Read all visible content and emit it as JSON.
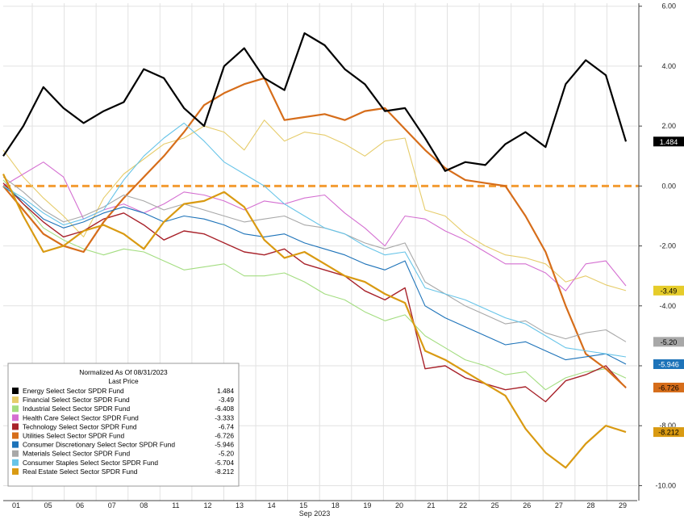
{
  "chart_data": {
    "type": "line",
    "x_axis": {
      "ticks": [
        "01",
        "05",
        "06",
        "07",
        "08",
        "11",
        "12",
        "13",
        "14",
        "15",
        "18",
        "19",
        "20",
        "21",
        "22",
        "25",
        "26",
        "27",
        "28",
        "29"
      ],
      "period_label": "Sep 2023"
    },
    "y_axis": {
      "ticks": [
        "6.00",
        "4.00",
        "2.00",
        "0.00",
        "-2.00",
        "-4.00",
        "-6.00",
        "-8.00",
        "-10.00"
      ],
      "ylim": [
        -10.5,
        6.1
      ],
      "grid": true
    },
    "zero_line": {
      "value": 0,
      "color": "#f39c33"
    },
    "legend": {
      "title": "Normalized As Of 08/31/2023",
      "subtitle": "Last Price",
      "position": "bottom-left"
    },
    "series": [
      {
        "name": "Energy Select Sector SPDR Fund",
        "last": "1.484",
        "color": "#000000",
        "values": [
          1.0,
          2.0,
          3.3,
          2.6,
          2.1,
          2.5,
          2.8,
          3.9,
          3.6,
          2.6,
          2.0,
          4.0,
          4.6,
          3.6,
          3.2,
          5.1,
          4.7,
          3.9,
          3.4,
          2.5,
          2.6,
          1.6,
          0.5,
          0.8,
          0.7,
          1.4,
          1.8,
          1.3,
          3.4,
          4.2,
          3.7,
          1.484
        ]
      },
      {
        "name": "Financial Select Sector SPDR Fund",
        "last": "-3.49",
        "color": "#e6cc6a",
        "values": [
          1.2,
          0.3,
          -0.4,
          -1.0,
          -1.7,
          -0.4,
          0.4,
          0.9,
          1.4,
          1.6,
          2.0,
          1.8,
          1.2,
          2.2,
          1.5,
          1.8,
          1.7,
          1.4,
          1.0,
          1.5,
          1.6,
          -0.8,
          -1.0,
          -1.6,
          -2.0,
          -2.3,
          -2.4,
          -2.6,
          -3.2,
          -3.0,
          -3.3,
          -3.49
        ]
      },
      {
        "name": "Industrial Select Sector SPDR Fund",
        "last": "-6.408",
        "color": "#a3dd80",
        "values": [
          0.2,
          -0.6,
          -1.4,
          -1.8,
          -2.1,
          -2.3,
          -2.1,
          -2.2,
          -2.5,
          -2.8,
          -2.7,
          -2.6,
          -3.0,
          -3.0,
          -2.9,
          -3.2,
          -3.6,
          -3.8,
          -4.2,
          -4.5,
          -4.3,
          -5.0,
          -5.4,
          -5.8,
          -6.0,
          -6.3,
          -6.2,
          -6.8,
          -6.4,
          -6.2,
          -6.1,
          -6.408
        ]
      },
      {
        "name": "Health Care Select Sector SPDR Fund",
        "last": "-3.333",
        "color": "#d46fd1",
        "values": [
          0.0,
          0.4,
          0.8,
          0.3,
          -1.1,
          -0.8,
          -0.6,
          -0.9,
          -0.6,
          -0.2,
          -0.3,
          -0.5,
          -0.8,
          -0.5,
          -0.6,
          -0.4,
          -0.3,
          -0.9,
          -1.4,
          -2.0,
          -1.0,
          -1.1,
          -1.5,
          -1.8,
          -2.2,
          -2.6,
          -2.6,
          -2.9,
          -3.5,
          -2.6,
          -2.5,
          -3.333
        ]
      },
      {
        "name": "Technology Select Sector SPDR Fund",
        "last": "-6.74",
        "color": "#a8222a",
        "values": [
          0.1,
          -0.6,
          -1.2,
          -1.7,
          -1.5,
          -1.1,
          -0.9,
          -1.3,
          -1.8,
          -1.5,
          -1.6,
          -1.9,
          -2.2,
          -2.3,
          -2.1,
          -2.6,
          -2.8,
          -3.0,
          -3.5,
          -3.8,
          -3.4,
          -6.1,
          -6.0,
          -6.4,
          -6.6,
          -6.8,
          -6.7,
          -7.2,
          -6.5,
          -6.3,
          -6.0,
          -6.74
        ]
      },
      {
        "name": "Utilities Select Sector SPDR Fund",
        "last": "-6.726",
        "color": "#d66d1a",
        "values": [
          0.0,
          -0.8,
          -1.6,
          -2.0,
          -2.2,
          -1.2,
          -0.4,
          0.3,
          1.0,
          1.8,
          2.7,
          3.1,
          3.4,
          3.6,
          2.2,
          2.3,
          2.4,
          2.2,
          2.5,
          2.6,
          1.9,
          1.2,
          0.6,
          0.2,
          0.1,
          0.0,
          -1.0,
          -2.2,
          -4.0,
          -5.6,
          -6.1,
          -6.726
        ]
      },
      {
        "name": "Consumer Discretionary Select Sector SPDR Fund",
        "last": "-5.946",
        "color": "#1d73b9",
        "values": [
          0.0,
          -0.5,
          -1.1,
          -1.4,
          -1.2,
          -0.9,
          -0.7,
          -0.9,
          -1.2,
          -1.0,
          -1.1,
          -1.3,
          -1.6,
          -1.7,
          -1.6,
          -1.9,
          -2.1,
          -2.3,
          -2.6,
          -2.8,
          -2.5,
          -4.0,
          -4.4,
          -4.7,
          -5.0,
          -5.3,
          -5.2,
          -5.5,
          -5.8,
          -5.7,
          -5.6,
          -5.946
        ]
      },
      {
        "name": "Materials Select Sector SPDR Fund",
        "last": "-5.20",
        "color": "#a8a8a8",
        "values": [
          0.3,
          -0.2,
          -0.8,
          -1.2,
          -1.0,
          -0.7,
          -0.3,
          -0.5,
          -0.8,
          -0.6,
          -0.8,
          -1.0,
          -1.2,
          -1.1,
          -1.0,
          -1.3,
          -1.4,
          -1.6,
          -1.9,
          -2.1,
          -1.9,
          -3.2,
          -3.6,
          -4.0,
          -4.3,
          -4.6,
          -4.5,
          -4.9,
          -5.1,
          -4.9,
          -4.8,
          -5.2
        ]
      },
      {
        "name": "Consumer Staples Select Sector SPDR Fund",
        "last": "-5.704",
        "color": "#67c4e8",
        "values": [
          0.0,
          -0.4,
          -0.9,
          -1.3,
          -1.1,
          -0.8,
          0.2,
          1.0,
          1.6,
          2.1,
          1.5,
          0.8,
          0.4,
          0.0,
          -0.6,
          -1.0,
          -1.4,
          -1.6,
          -2.0,
          -2.3,
          -2.2,
          -3.4,
          -3.6,
          -3.8,
          -4.1,
          -4.4,
          -4.6,
          -5.0,
          -5.4,
          -5.5,
          -5.6,
          -5.704
        ]
      },
      {
        "name": "Real Estate Select Sector SPDR Fund",
        "last": "-8.212",
        "color": "#d99a12",
        "values": [
          0.4,
          -1.0,
          -2.2,
          -2.0,
          -1.5,
          -1.3,
          -1.6,
          -2.1,
          -1.2,
          -0.6,
          -0.5,
          -0.2,
          -0.7,
          -1.8,
          -2.4,
          -2.2,
          -2.6,
          -3.0,
          -3.2,
          -3.6,
          -3.9,
          -5.5,
          -5.8,
          -6.2,
          -6.6,
          -7.0,
          -8.1,
          -8.9,
          -9.4,
          -8.6,
          -8.0,
          -8.212
        ]
      }
    ],
    "right_labels": [
      {
        "text": "1.484",
        "bg": "#000000",
        "fg": "#ffffff",
        "value": 1.484
      },
      {
        "text": "-3.49",
        "bg": "#e6cc2a",
        "fg": "#000000",
        "value": -3.49
      },
      {
        "text": "-5.20",
        "bg": "#a8a8a8",
        "fg": "#000000",
        "value": -5.2
      },
      {
        "text": "-5.946",
        "bg": "#1d73b9",
        "fg": "#ffffff",
        "value": -5.946
      },
      {
        "text": "-6.726",
        "bg": "#d66d1a",
        "fg": "#000000",
        "value": -6.726
      },
      {
        "text": "-8.212",
        "bg": "#d99a12",
        "fg": "#000000",
        "value": -8.212
      }
    ]
  }
}
